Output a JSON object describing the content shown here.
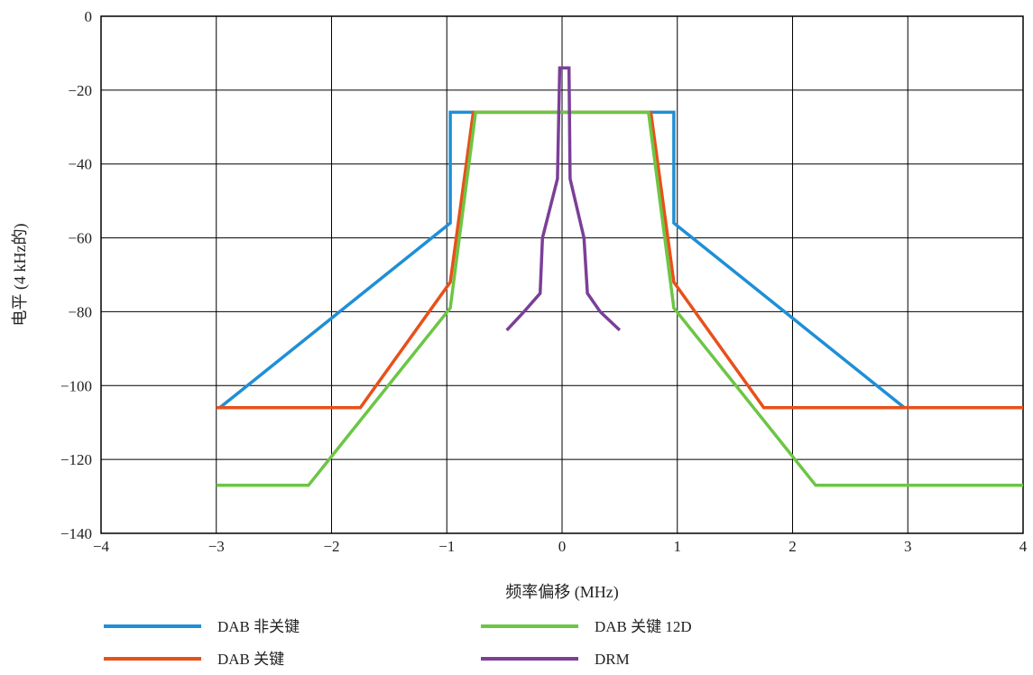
{
  "chart_data": {
    "type": "line",
    "title": "",
    "xlabel": "频率偏移 (MHz)",
    "ylabel": "电平 (4 kHz的)",
    "xlim": [
      -4,
      4
    ],
    "ylim": [
      -140,
      0
    ],
    "xticks": [
      -4,
      -3,
      -2,
      -1,
      0,
      1,
      2,
      3,
      4
    ],
    "yticks": [
      0,
      -20,
      -40,
      -60,
      -80,
      -100,
      -120,
      -140
    ],
    "xtick_labels": [
      "−4",
      "−3",
      "−2",
      "−1",
      "0",
      "1",
      "2",
      "3",
      "4"
    ],
    "ytick_labels": [
      "0",
      "−20",
      "−40",
      "−60",
      "−80",
      "−100",
      "−120",
      "−140"
    ],
    "grid": true,
    "legend_position": "bottom",
    "series": [
      {
        "name": "DAB 非关键",
        "color": "#1f8fd6",
        "points": [
          [
            -2.97,
            -106
          ],
          [
            -0.97,
            -56
          ],
          [
            -0.97,
            -26
          ],
          [
            0.97,
            -26
          ],
          [
            0.97,
            -56
          ],
          [
            2.97,
            -106
          ]
        ]
      },
      {
        "name": "DAB 关键",
        "color": "#e8501a",
        "points": [
          [
            -3,
            -106
          ],
          [
            -1.75,
            -106
          ],
          [
            -0.97,
            -72
          ],
          [
            -0.77,
            -26
          ],
          [
            0.77,
            -26
          ],
          [
            0.97,
            -72
          ],
          [
            1.75,
            -106
          ],
          [
            4,
            -106
          ]
        ]
      },
      {
        "name": "DAB 关键 12D",
        "color": "#6cc644",
        "points": [
          [
            -3,
            -127
          ],
          [
            -2.2,
            -127
          ],
          [
            -0.97,
            -79
          ],
          [
            -0.75,
            -26
          ],
          [
            0.75,
            -26
          ],
          [
            0.97,
            -79
          ],
          [
            2.2,
            -127
          ],
          [
            4,
            -127
          ]
        ]
      },
      {
        "name": "DRM",
        "color": "#7b3f98",
        "points": [
          [
            -0.48,
            -85
          ],
          [
            -0.33,
            -80
          ],
          [
            -0.19,
            -75
          ],
          [
            -0.17,
            -60
          ],
          [
            -0.04,
            -44
          ],
          [
            -0.02,
            -14
          ],
          [
            0.06,
            -14
          ],
          [
            0.07,
            -44
          ],
          [
            0.19,
            -60
          ],
          [
            0.22,
            -75
          ],
          [
            0.33,
            -80
          ],
          [
            0.5,
            -85
          ]
        ]
      }
    ]
  }
}
